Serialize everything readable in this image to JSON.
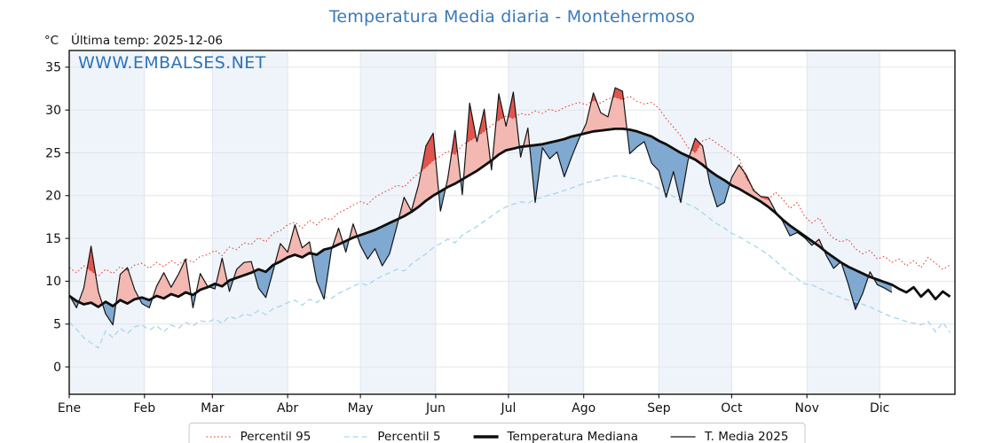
{
  "chart_data": {
    "type": "line",
    "title": "Temperatura Media diaria - Montehermoso",
    "title_color": "#3a7ab8",
    "annotations": {
      "unit_label": "°C",
      "last_temp": "Última temp: 2025-12-06",
      "watermark": "WWW.EMBALSES.NET",
      "watermark_color": "#2e73b8"
    },
    "x_axis": {
      "months": [
        "Ene",
        "Feb",
        "Mar",
        "Abr",
        "May",
        "Jun",
        "Jul",
        "Ago",
        "Sep",
        "Oct",
        "Nov",
        "Dic"
      ],
      "month_start_days": [
        0,
        31,
        59,
        90,
        120,
        151,
        181,
        212,
        243,
        273,
        304,
        334
      ],
      "total_days": 365,
      "day_step": 3
    },
    "y_axis": {
      "ticks": [
        0,
        5,
        10,
        15,
        20,
        25,
        30,
        35
      ],
      "range": [
        -3.2,
        36.95
      ],
      "unit": "°C"
    },
    "style": {
      "band_color": "#eff4fa",
      "grid_color": "#e0e6ed",
      "spine_color": "#000000"
    },
    "fills": {
      "above_median": "#f3b8b2",
      "above_p95": "#e0564e",
      "below_median": "#7fa9d0",
      "below_p5": "#3d6fa6"
    },
    "legend": {
      "position": "bottom-center"
    },
    "series": [
      {
        "name": "Percentil 95",
        "style": "dotted",
        "color": "#e5362b",
        "width": 1,
        "values": [
          11.6,
          11.0,
          11.8,
          11.2,
          10.6,
          11.4,
          10.9,
          11.7,
          11.2,
          11.9,
          12.1,
          11.5,
          12.2,
          11.7,
          12.4,
          11.9,
          12.6,
          12.2,
          12.9,
          13.1,
          13.6,
          13.0,
          14.0,
          13.7,
          14.5,
          14.3,
          15.1,
          14.6,
          15.6,
          15.9,
          16.6,
          16.9,
          16.2,
          17.1,
          16.6,
          17.4,
          17.2,
          18.0,
          18.4,
          18.9,
          19.3,
          19.0,
          19.8,
          20.3,
          20.7,
          21.2,
          21.0,
          21.9,
          22.6,
          23.3,
          24.1,
          24.6,
          25.2,
          24.8,
          25.9,
          26.4,
          26.9,
          27.5,
          28.2,
          28.8,
          29.3,
          29.0,
          29.6,
          29.4,
          29.9,
          29.6,
          30.1,
          29.8,
          30.3,
          30.6,
          30.9,
          30.6,
          31.1,
          30.8,
          31.3,
          31.5,
          31.2,
          31.6,
          31.0,
          30.7,
          30.9,
          30.2,
          29.0,
          28.0,
          27.0,
          25.6,
          25.0,
          26.4,
          26.7,
          26.1,
          25.5,
          24.9,
          24.4,
          22.0,
          20.8,
          19.8,
          19.5,
          20.4,
          19.6,
          18.5,
          19.2,
          17.6,
          16.8,
          17.4,
          15.8,
          15.0,
          14.6,
          14.9,
          13.8,
          13.2,
          13.6,
          12.6,
          12.9,
          12.2,
          12.6,
          11.8,
          12.4,
          11.6,
          12.8,
          12.1,
          11.4,
          11.9
        ]
      },
      {
        "name": "Percentil 5",
        "style": "dashed",
        "color": "#a7d6e9",
        "width": 1.3,
        "values": [
          5.2,
          4.4,
          3.4,
          2.8,
          2.2,
          4.2,
          3.4,
          4.5,
          3.9,
          4.7,
          4.9,
          4.3,
          4.8,
          4.1,
          4.9,
          4.5,
          5.2,
          4.8,
          5.4,
          5.2,
          5.6,
          5.1,
          5.9,
          5.6,
          6.2,
          6.0,
          6.6,
          6.1,
          6.8,
          7.1,
          7.5,
          7.8,
          7.2,
          7.9,
          7.5,
          8.2,
          8.0,
          8.6,
          9.0,
          9.4,
          9.8,
          9.5,
          10.2,
          10.6,
          11.0,
          11.4,
          11.2,
          12.0,
          12.6,
          13.2,
          13.9,
          14.4,
          14.9,
          14.5,
          15.4,
          15.9,
          16.4,
          17.0,
          17.6,
          18.2,
          18.7,
          19.0,
          19.3,
          19.1,
          19.6,
          19.8,
          20.1,
          20.3,
          20.6,
          20.9,
          21.2,
          21.5,
          21.7,
          21.9,
          22.1,
          22.3,
          22.3,
          22.1,
          21.9,
          21.6,
          21.3,
          20.8,
          20.4,
          19.9,
          19.4,
          19.0,
          18.6,
          18.0,
          17.3,
          16.7,
          16.2,
          15.6,
          15.2,
          14.7,
          14.2,
          13.7,
          13.1,
          12.4,
          11.6,
          10.9,
          10.3,
          9.7,
          9.6,
          9.2,
          8.8,
          8.4,
          8.1,
          7.8,
          7.6,
          7.3,
          7.0,
          6.6,
          6.2,
          5.8,
          5.6,
          5.3,
          5.1,
          4.9,
          5.3,
          4.1,
          5.2,
          4.0
        ]
      },
      {
        "name": "Temperatura Mediana",
        "style": "solid",
        "color": "#0d0d0d",
        "width": 2.8,
        "values": [
          8.3,
          7.7,
          7.3,
          7.5,
          7.0,
          7.6,
          7.1,
          7.8,
          7.4,
          7.9,
          8.1,
          7.8,
          8.3,
          8.0,
          8.5,
          8.2,
          8.7,
          8.4,
          9.0,
          9.3,
          9.7,
          9.4,
          10.1,
          10.4,
          10.7,
          11.0,
          11.4,
          11.1,
          11.9,
          12.3,
          12.8,
          13.1,
          12.8,
          13.3,
          13.1,
          13.7,
          13.9,
          14.3,
          14.7,
          15.1,
          15.4,
          15.7,
          16.0,
          16.4,
          16.8,
          17.2,
          17.6,
          18.1,
          18.7,
          19.4,
          20.0,
          20.5,
          21.0,
          21.4,
          21.9,
          22.4,
          22.9,
          23.5,
          24.1,
          24.8,
          25.3,
          25.5,
          25.7,
          25.8,
          25.9,
          26.0,
          26.2,
          26.4,
          26.6,
          26.9,
          27.1,
          27.3,
          27.5,
          27.6,
          27.7,
          27.8,
          27.8,
          27.7,
          27.5,
          27.2,
          26.9,
          26.4,
          26.0,
          25.5,
          25.0,
          24.6,
          24.2,
          23.6,
          22.9,
          22.3,
          21.8,
          21.2,
          20.8,
          20.3,
          19.8,
          19.3,
          18.7,
          18.0,
          17.2,
          16.5,
          15.9,
          15.3,
          14.7,
          14.1,
          13.4,
          12.8,
          12.2,
          11.7,
          11.3,
          10.9,
          10.5,
          10.2,
          9.9,
          9.6,
          9.1,
          8.7,
          9.3,
          8.2,
          9.0,
          7.9,
          8.8,
          8.2
        ]
      },
      {
        "name": "T. Media 2025",
        "style": "solid",
        "color": "#141414",
        "width": 1.2,
        "values": [
          8.4,
          6.9,
          9.2,
          14.1,
          8.8,
          6.2,
          4.9,
          10.8,
          11.6,
          9.0,
          7.4,
          6.9,
          9.4,
          11.0,
          9.3,
          10.8,
          12.6,
          6.9,
          10.9,
          9.4,
          9.1,
          12.7,
          8.8,
          11.4,
          12.2,
          12.3,
          9.2,
          8.1,
          11.2,
          14.4,
          13.4,
          16.6,
          13.9,
          14.6,
          10.0,
          7.9,
          13.6,
          16.2,
          13.4,
          16.7,
          14.2,
          12.6,
          13.8,
          11.8,
          13.2,
          16.4,
          19.8,
          18.2,
          21.3,
          25.8,
          27.3,
          18.2,
          22.0,
          27.6,
          20.1,
          30.8,
          26.3,
          30.1,
          23.0,
          31.9,
          28.1,
          32.1,
          24.5,
          27.9,
          19.2,
          25.6,
          24.3,
          25.1,
          22.2,
          24.5,
          26.6,
          28.4,
          32.0,
          29.7,
          29.2,
          32.6,
          32.2,
          24.9,
          25.7,
          26.3,
          23.8,
          22.9,
          19.8,
          22.8,
          19.2,
          24.1,
          26.7,
          25.8,
          21.4,
          18.7,
          19.2,
          22.1,
          23.6,
          22.4,
          20.6,
          19.9,
          19.8,
          18.2,
          17.0,
          15.3,
          15.7,
          15.1,
          14.2,
          14.9,
          13.0,
          11.5,
          12.3,
          9.7,
          6.7,
          8.6,
          11.1,
          9.6,
          9.2,
          8.7,
          null,
          null,
          null,
          null,
          null,
          null,
          null,
          null
        ]
      }
    ]
  }
}
